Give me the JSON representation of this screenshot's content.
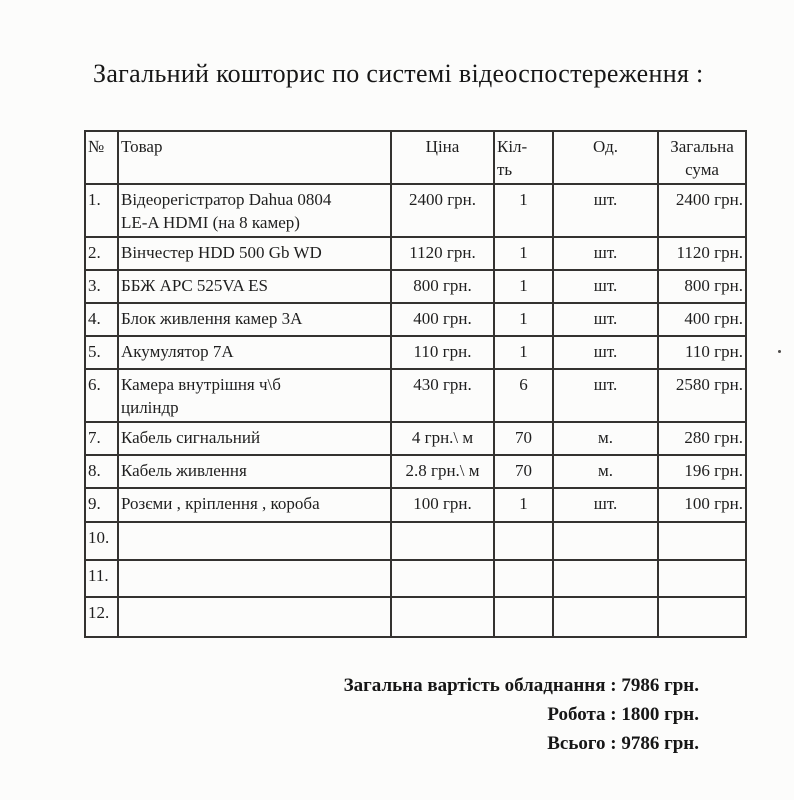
{
  "page": {
    "title": "Загальний кошторис по системі відеоспостереження :"
  },
  "table": {
    "headers": {
      "num": "№",
      "product": "Товар",
      "price": "Ціна",
      "qty": "Кіл-\nть",
      "unit": "Од.",
      "total": "Загальна\nсума"
    },
    "rows": [
      {
        "num": "1.",
        "product": "Відеорегістратор Dahua 0804\nLE-A HDMI  (на 8 камер)",
        "price": "2400 грн.",
        "qty": "1",
        "unit": "шт.",
        "total": "2400 грн."
      },
      {
        "num": "2.",
        "product": "Вінчестер HDD 500 Gb WD",
        "price": "1120 грн.",
        "qty": "1",
        "unit": "шт.",
        "total": "1120 грн."
      },
      {
        "num": "3.",
        "product": "ББЖ  APC 525VA ES",
        "price": "800 грн.",
        "qty": "1",
        "unit": "шт.",
        "total": "800 грн."
      },
      {
        "num": "4.",
        "product": "Блок живлення камер 3А",
        "price": "400 грн.",
        "qty": "1",
        "unit": "шт.",
        "total": "400 грн."
      },
      {
        "num": "5.",
        "product": "Акумулятор 7А",
        "price": "110 грн.",
        "qty": "1",
        "unit": "шт.",
        "total": "110 грн."
      },
      {
        "num": "6.",
        "product": "Камера внутрішня ч\\б\nциліндр",
        "price": "430 грн.",
        "qty": "6",
        "unit": "шт.",
        "total": "2580 грн."
      },
      {
        "num": "7.",
        "product": "Кабель сигнальний",
        "price": "4 грн.\\ м",
        "qty": "70",
        "unit": "м.",
        "total": "280 грн."
      },
      {
        "num": "8.",
        "product": "Кабель живлення",
        "price": "2.8 грн.\\ м",
        "qty": "70",
        "unit": "м.",
        "total": "196 грн."
      },
      {
        "num": "9.",
        "product": "Розєми , кріплення , короба",
        "price": "100  грн.",
        "qty": "1",
        "unit": "шт.",
        "total": "100 грн."
      },
      {
        "num": "10.",
        "product": "",
        "price": "",
        "qty": "",
        "unit": "",
        "total": ""
      },
      {
        "num": "11.",
        "product": "",
        "price": "",
        "qty": "",
        "unit": "",
        "total": ""
      },
      {
        "num": "12.",
        "product": "",
        "price": "",
        "qty": "",
        "unit": "",
        "total": ""
      }
    ]
  },
  "summary": {
    "equipment_total": "Загальна вартість обладнання : 7986 грн.",
    "work": "Робота : 1800 грн.",
    "grand_total": "Всього : 9786 грн."
  }
}
